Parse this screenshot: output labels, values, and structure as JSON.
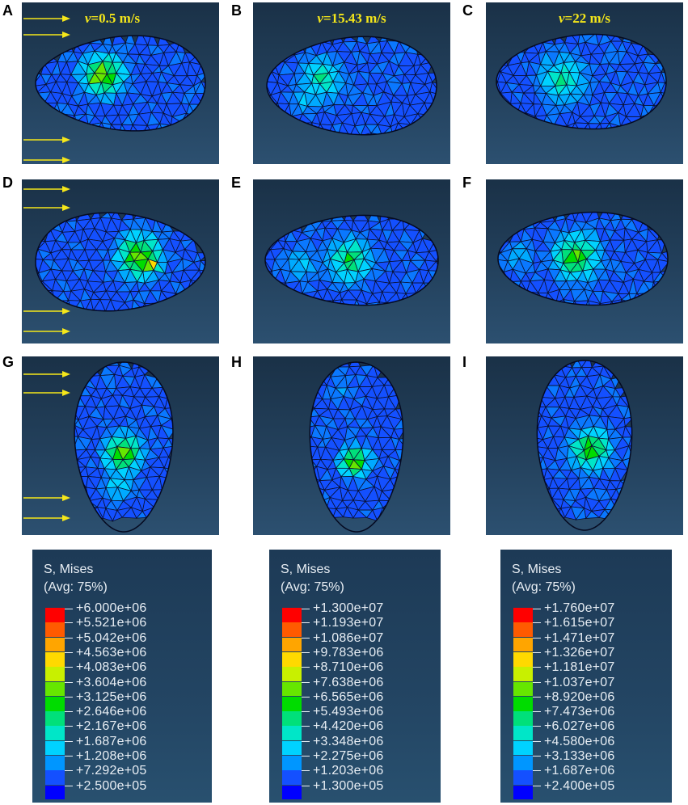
{
  "panels": [
    {
      "letter": "A",
      "velocity_label": "0.5 m/s"
    },
    {
      "letter": "B",
      "velocity_label": "15.43 m/s"
    },
    {
      "letter": "C",
      "velocity_label": "22 m/s"
    },
    {
      "letter": "D"
    },
    {
      "letter": "E"
    },
    {
      "letter": "F"
    },
    {
      "letter": "G"
    },
    {
      "letter": "H"
    },
    {
      "letter": "I"
    }
  ],
  "velocity_symbol": "v",
  "velocity_color": "#f5e71a",
  "arrow_color": "#f5e71a",
  "legends": [
    {
      "title": "S, Mises",
      "subtitle": "(Avg: 75%)",
      "values": [
        "+6.000e+06",
        "+5.521e+06",
        "+5.042e+06",
        "+4.563e+06",
        "+4.083e+06",
        "+3.604e+06",
        "+3.125e+06",
        "+2.646e+06",
        "+2.167e+06",
        "+1.687e+06",
        "+1.208e+06",
        "+7.292e+05",
        "+2.500e+05"
      ]
    },
    {
      "title": "S, Mises",
      "subtitle": "(Avg: 75%)",
      "values": [
        "+1.300e+07",
        "+1.193e+07",
        "+1.086e+07",
        "+9.783e+06",
        "+8.710e+06",
        "+7.638e+06",
        "+6.565e+06",
        "+5.493e+06",
        "+4.420e+06",
        "+3.348e+06",
        "+2.275e+06",
        "+1.203e+06",
        "+1.300e+05"
      ]
    },
    {
      "title": "S, Mises",
      "subtitle": "(Avg: 75%)",
      "values": [
        "+1.760e+07",
        "+1.615e+07",
        "+1.471e+07",
        "+1.326e+07",
        "+1.181e+07",
        "+1.037e+07",
        "+8.920e+06",
        "+7.473e+06",
        "+6.027e+06",
        "+4.580e+06",
        "+3.133e+06",
        "+1.687e+06",
        "+2.400e+05"
      ]
    }
  ],
  "colormap": [
    "#ff0000",
    "#ff5a00",
    "#ffa500",
    "#ffd900",
    "#c8f000",
    "#66e600",
    "#00dc00",
    "#00e07a",
    "#00e6c8",
    "#00d2ff",
    "#0096ff",
    "#1450ff",
    "#0000ff"
  ]
}
